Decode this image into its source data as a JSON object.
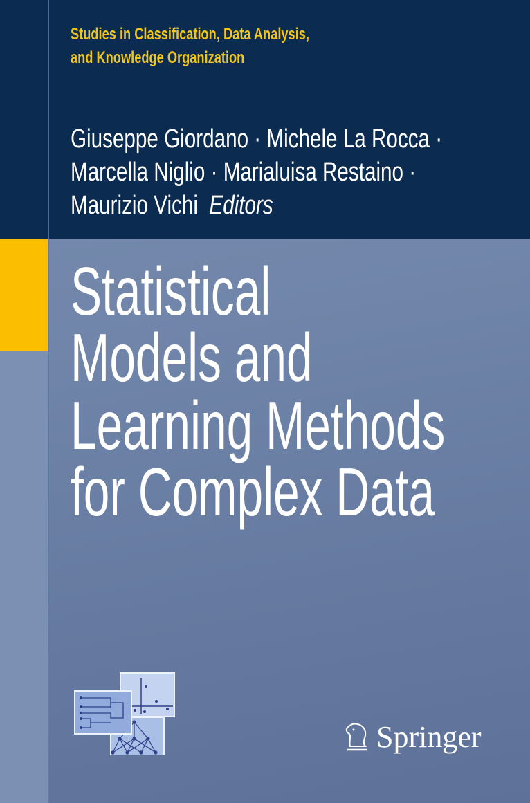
{
  "series": {
    "line1": "Studies in Classification, Data Analysis,",
    "line2": "and Knowledge Organization"
  },
  "authors": {
    "line1": "Giuseppe Giordano · Michele La Rocca ·",
    "line2": "Marcella Niglio · Marialuisa Restaino ·",
    "line3": "Maurizio Vichi",
    "role": "Editors"
  },
  "title": {
    "lines": [
      "Statistical",
      "Models and",
      "Learning Methods",
      "for Complex Data"
    ]
  },
  "publisher": {
    "name": "Springer",
    "logo_icon": "knight-chess-piece-icon"
  },
  "colors": {
    "navy": "#0b2b50",
    "yellow": "#fcbe00",
    "series_text": "#f2c51a",
    "background": "#7085a9"
  }
}
